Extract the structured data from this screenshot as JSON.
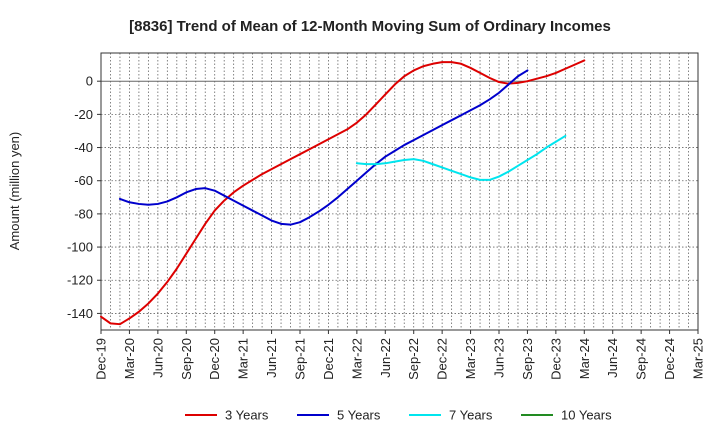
{
  "chart_data": {
    "type": "line",
    "title": "[8836]  Trend of Mean of 12-Month Moving Sum of Ordinary Incomes",
    "xlabel": "",
    "ylabel": "Amount (million yen)",
    "ylim": [
      -150,
      17
    ],
    "y_ticks": [
      0,
      -20,
      -40,
      -60,
      -80,
      -100,
      -120,
      -140
    ],
    "x_ticks": [
      "Dec-19",
      "Mar-20",
      "Jun-20",
      "Sep-20",
      "Dec-20",
      "Mar-21",
      "Jun-21",
      "Sep-21",
      "Dec-21",
      "Mar-22",
      "Jun-22",
      "Sep-22",
      "Dec-22",
      "Mar-23",
      "Jun-23",
      "Sep-23",
      "Dec-23",
      "Mar-24",
      "Jun-24",
      "Sep-24",
      "Dec-24",
      "Mar-25"
    ],
    "x_index_range": [
      0,
      63
    ],
    "grid": true,
    "legend_position": "bottom",
    "series": [
      {
        "name": "3 Years",
        "color": "#dd0000",
        "points": [
          [
            0,
            -142
          ],
          [
            1,
            -146
          ],
          [
            2,
            -146.5
          ],
          [
            3,
            -143
          ],
          [
            4,
            -139
          ],
          [
            5,
            -134
          ],
          [
            6,
            -128
          ],
          [
            7,
            -121
          ],
          [
            8,
            -113
          ],
          [
            9,
            -104
          ],
          [
            10,
            -95
          ],
          [
            11,
            -86
          ],
          [
            12,
            -78
          ],
          [
            13,
            -72
          ],
          [
            14,
            -67
          ],
          [
            15,
            -63
          ],
          [
            16,
            -59.5
          ],
          [
            17,
            -56
          ],
          [
            18,
            -53
          ],
          [
            19,
            -50
          ],
          [
            20,
            -47
          ],
          [
            21,
            -44
          ],
          [
            22,
            -41
          ],
          [
            23,
            -38
          ],
          [
            24,
            -35
          ],
          [
            25,
            -32
          ],
          [
            26,
            -29
          ],
          [
            27,
            -25
          ],
          [
            28,
            -20
          ],
          [
            29,
            -14
          ],
          [
            30,
            -8
          ],
          [
            31,
            -2
          ],
          [
            32,
            3
          ],
          [
            33,
            6.5
          ],
          [
            34,
            9
          ],
          [
            35,
            10.5
          ],
          [
            36,
            11.5
          ],
          [
            37,
            11.5
          ],
          [
            38,
            10.5
          ],
          [
            39,
            8
          ],
          [
            40,
            5
          ],
          [
            41,
            2
          ],
          [
            42,
            -0.5
          ],
          [
            43,
            -1.5
          ],
          [
            44,
            -1
          ],
          [
            45,
            0
          ],
          [
            46,
            1.5
          ],
          [
            47,
            3
          ],
          [
            48,
            5
          ],
          [
            49,
            7.5
          ],
          [
            50,
            10
          ],
          [
            51,
            12.5
          ]
        ]
      },
      {
        "name": "5 Years",
        "color": "#0000cc",
        "points": [
          [
            2,
            -71
          ],
          [
            3,
            -73
          ],
          [
            4,
            -74
          ],
          [
            5,
            -74.5
          ],
          [
            6,
            -74
          ],
          [
            7,
            -72.5
          ],
          [
            8,
            -70
          ],
          [
            9,
            -67
          ],
          [
            10,
            -65
          ],
          [
            11,
            -64.5
          ],
          [
            12,
            -66
          ],
          [
            13,
            -69
          ],
          [
            14,
            -72
          ],
          [
            15,
            -75
          ],
          [
            16,
            -78
          ],
          [
            17,
            -81
          ],
          [
            18,
            -84
          ],
          [
            19,
            -86
          ],
          [
            20,
            -86.5
          ],
          [
            21,
            -85
          ],
          [
            22,
            -82
          ],
          [
            23,
            -78.5
          ],
          [
            24,
            -74.5
          ],
          [
            25,
            -70
          ],
          [
            26,
            -65
          ],
          [
            27,
            -60
          ],
          [
            28,
            -55
          ],
          [
            29,
            -50
          ],
          [
            30,
            -45.5
          ],
          [
            31,
            -42
          ],
          [
            32,
            -38.5
          ],
          [
            33,
            -35.5
          ],
          [
            34,
            -32.5
          ],
          [
            35,
            -29.5
          ],
          [
            36,
            -26.5
          ],
          [
            37,
            -23.5
          ],
          [
            38,
            -20.5
          ],
          [
            39,
            -17.5
          ],
          [
            40,
            -14.5
          ],
          [
            41,
            -11
          ],
          [
            42,
            -7
          ],
          [
            43,
            -2
          ],
          [
            44,
            3
          ],
          [
            45,
            6.5
          ]
        ]
      },
      {
        "name": "7 Years",
        "color": "#00e5ee",
        "points": [
          [
            27,
            -49.5
          ],
          [
            28,
            -50
          ],
          [
            29,
            -50
          ],
          [
            30,
            -49.5
          ],
          [
            31,
            -48.5
          ],
          [
            32,
            -47.5
          ],
          [
            33,
            -47
          ],
          [
            34,
            -48
          ],
          [
            35,
            -50
          ],
          [
            36,
            -52
          ],
          [
            37,
            -54
          ],
          [
            38,
            -56
          ],
          [
            39,
            -58
          ],
          [
            40,
            -59.5
          ],
          [
            41,
            -59.5
          ],
          [
            42,
            -57.5
          ],
          [
            43,
            -54.5
          ],
          [
            44,
            -51
          ],
          [
            45,
            -47.5
          ],
          [
            46,
            -44
          ],
          [
            47,
            -40
          ],
          [
            48,
            -36.5
          ],
          [
            49,
            -33
          ]
        ]
      },
      {
        "name": "10 Years",
        "color": "#228b22",
        "points": []
      }
    ]
  }
}
